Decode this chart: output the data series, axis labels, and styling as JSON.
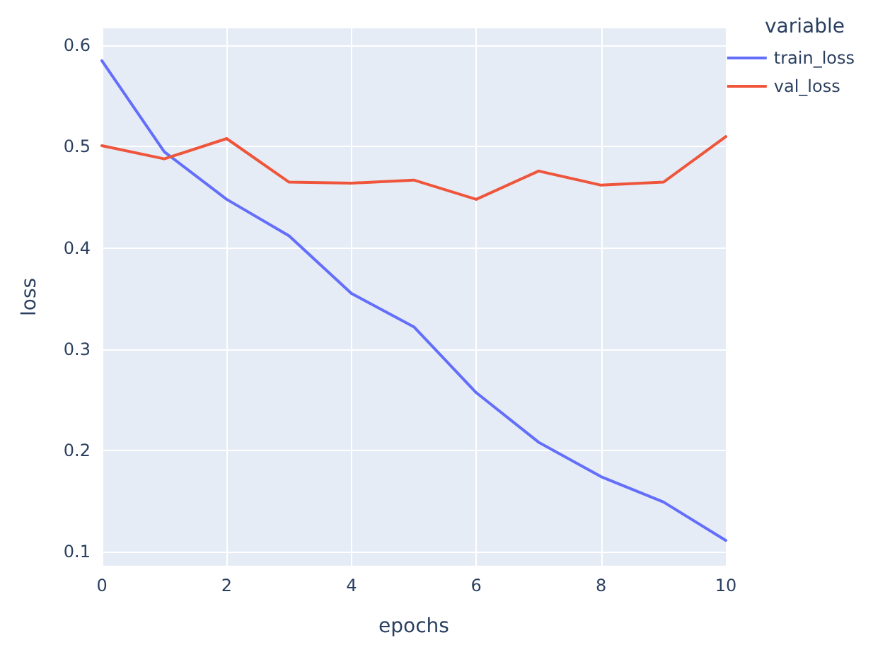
{
  "chart_data": {
    "type": "line",
    "xlabel": "epochs",
    "ylabel": "loss",
    "legend_title": "variable",
    "x": [
      0,
      1,
      2,
      3,
      4,
      5,
      6,
      7,
      8,
      9,
      10
    ],
    "series": [
      {
        "name": "train_loss",
        "color": "#636efa",
        "values": [
          0.585,
          0.495,
          0.448,
          0.412,
          0.355,
          0.322,
          0.257,
          0.208,
          0.174,
          0.149,
          0.111
        ]
      },
      {
        "name": "val_loss",
        "color": "#ef553b",
        "values": [
          0.501,
          0.488,
          0.508,
          0.465,
          0.464,
          0.467,
          0.448,
          0.476,
          0.462,
          0.465,
          0.51
        ]
      }
    ],
    "xlim": [
      0,
      10
    ],
    "xticks": [
      0,
      2,
      4,
      6,
      8,
      10
    ],
    "ylim": [
      0.086,
      0.617
    ],
    "yticks": [
      0.1,
      0.2,
      0.3,
      0.4,
      0.5,
      0.6
    ],
    "grid": true,
    "legend": "top right",
    "marker": "none",
    "line_style": "solid"
  }
}
